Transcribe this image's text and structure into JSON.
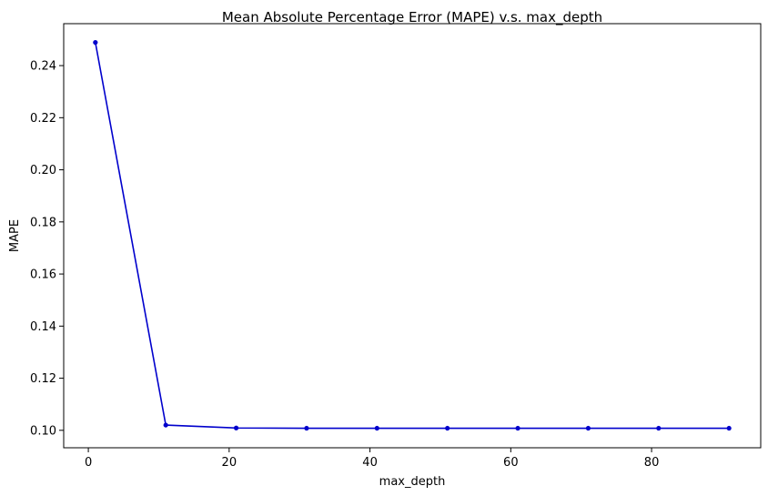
{
  "chart_data": {
    "type": "line",
    "title": "Mean Absolute Percentage Error (MAPE) v.s. max_depth",
    "xlabel": "max_depth",
    "ylabel": "MAPE",
    "xlim": [
      -3.5,
      95.5
    ],
    "ylim": [
      0.0933,
      0.2561
    ],
    "xticks": [
      0,
      20,
      40,
      60,
      80
    ],
    "xtick_labels": [
      "0",
      "20",
      "40",
      "60",
      "80"
    ],
    "yticks": [
      0.1,
      0.12,
      0.14,
      0.16,
      0.18,
      0.2,
      0.22,
      0.24
    ],
    "ytick_labels": [
      "0.10",
      "0.12",
      "0.14",
      "0.16",
      "0.18",
      "0.20",
      "0.22",
      "0.24"
    ],
    "grid": false,
    "series": [
      {
        "color": "#0000cc",
        "marker": "circle",
        "x": [
          1,
          11,
          21,
          31,
          41,
          51,
          61,
          71,
          81,
          91
        ],
        "y": [
          0.2489,
          0.102,
          0.1009,
          0.1008,
          0.1008,
          0.1008,
          0.1008,
          0.1008,
          0.1008,
          0.1008
        ]
      }
    ]
  }
}
